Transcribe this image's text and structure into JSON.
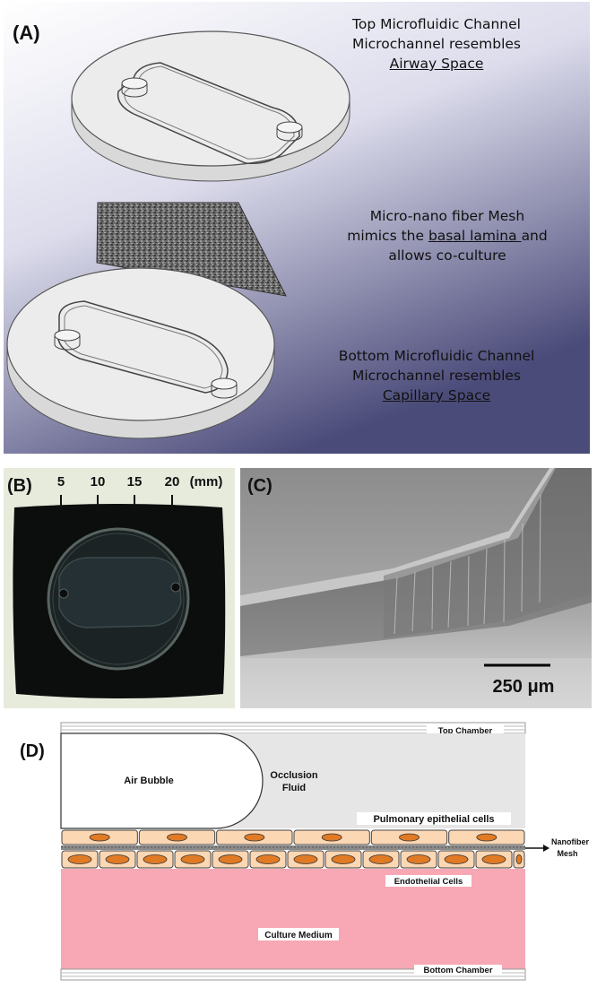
{
  "panel_a": {
    "label": "(A)",
    "top_title": "Top Microfluidic Channel",
    "top_line2": "Microchannel resembles",
    "top_line3": "Airway Space",
    "mesh_line1": "Micro-nano fiber Mesh",
    "mesh_line2_prefix": "mimics the ",
    "mesh_line2_underlined": "basal lamina ",
    "mesh_line2_suffix": "and",
    "mesh_line3": "allows co-culture",
    "bottom_title": "Bottom Microfluidic Channel",
    "bottom_line2": "Microchannel resembles",
    "bottom_line3": "Capillary Space"
  },
  "panel_b": {
    "label": "(B)",
    "ruler": [
      "5",
      "10",
      "15",
      "20"
    ],
    "unit": "(mm)"
  },
  "panel_c": {
    "label": "(C)",
    "scale_bar": "250 μm"
  },
  "panel_d": {
    "label": "(D)",
    "top_chamber": "Top Chamber",
    "air_bubble": "Air Bubble",
    "occlusion_line1": "Occlusion",
    "occlusion_line2": "Fluid",
    "epithelial": "Pulmonary epithelial cells",
    "nanofiber_line1": "Nanofiber",
    "nanofiber_line2": "Mesh",
    "endothelial": "Endothelial Cells",
    "culture_medium": "Culture Medium",
    "bottom_chamber": "Bottom Chamber"
  },
  "colors": {
    "panel_a_bg_start": "#ffffff",
    "panel_a_bg_end": "#4a4a78",
    "culture_medium": "#f7a8b4",
    "cell_fill": "#fbd7b4",
    "nucleus": "#e07a25",
    "occlusion_fluid": "#e6e6e6"
  }
}
